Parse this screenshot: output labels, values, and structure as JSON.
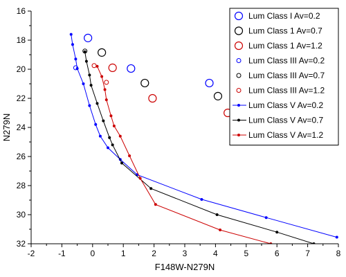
{
  "chart_data": {
    "type": "scatter",
    "title": "",
    "xlabel": "F148W-N279N",
    "ylabel": "N279N",
    "xlim": [
      -2,
      8
    ],
    "ylim": [
      32,
      16
    ],
    "y_inverted": true,
    "grid": false,
    "legend_position": "top-right",
    "x_ticks": [
      -2,
      -1,
      0,
      1,
      2,
      3,
      4,
      5,
      6,
      7,
      8
    ],
    "y_ticks": [
      16,
      18,
      20,
      22,
      24,
      26,
      28,
      30,
      32
    ],
    "series": [
      {
        "name": "Lum Class I Av=0.2",
        "color": "#0000ff",
        "marker": "open-circle-large",
        "line": false,
        "points": [
          [
            -0.15,
            17.85
          ],
          [
            1.25,
            19.95
          ],
          [
            3.8,
            20.95
          ]
        ]
      },
      {
        "name": "Lum Class 1 Av=0.7",
        "color": "#000000",
        "marker": "open-circle-large",
        "line": false,
        "points": [
          [
            0.3,
            18.85
          ],
          [
            1.7,
            20.95
          ],
          [
            4.08,
            21.85
          ]
        ]
      },
      {
        "name": "Lum Class 1 Av=1.2",
        "color": "#cc0000",
        "marker": "open-circle-large",
        "line": false,
        "points": [
          [
            0.65,
            19.9
          ],
          [
            1.95,
            22.0
          ],
          [
            4.4,
            23.0
          ]
        ]
      },
      {
        "name": "Lum Class III Av=0.2",
        "color": "#0000ff",
        "marker": "open-circle-small",
        "line": false,
        "points": [
          [
            -0.55,
            19.9
          ]
        ]
      },
      {
        "name": "Lum Class III Av=0.7",
        "color": "#000000",
        "marker": "open-circle-small",
        "line": false,
        "points": [
          [
            -0.25,
            18.75
          ]
        ]
      },
      {
        "name": "Lum Class III Av=1.2",
        "color": "#cc0000",
        "marker": "open-circle-small",
        "line": false,
        "points": [
          [
            0.45,
            20.9
          ],
          [
            0.05,
            19.75
          ]
        ]
      },
      {
        "name": "Lum Class V Av=0.2",
        "color": "#0000ff",
        "marker": "dot",
        "line": true,
        "points": [
          [
            -0.7,
            17.6
          ],
          [
            -0.65,
            18.3
          ],
          [
            -0.55,
            19.3
          ],
          [
            -0.5,
            19.95
          ],
          [
            -0.3,
            21.0
          ],
          [
            -0.1,
            22.5
          ],
          [
            0.1,
            23.8
          ],
          [
            0.25,
            24.6
          ],
          [
            0.5,
            25.4
          ],
          [
            0.9,
            26.2
          ],
          [
            1.45,
            27.25
          ],
          [
            3.55,
            28.95
          ],
          [
            5.65,
            30.2
          ],
          [
            7.95,
            31.55
          ]
        ]
      },
      {
        "name": "Lum Class V Av=0.7",
        "color": "#000000",
        "marker": "dot",
        "line": true,
        "points": [
          [
            -0.25,
            18.8
          ],
          [
            -0.2,
            19.45
          ],
          [
            -0.1,
            20.4
          ],
          [
            -0.05,
            21.1
          ],
          [
            0.15,
            22.35
          ],
          [
            0.35,
            23.55
          ],
          [
            0.55,
            24.7
          ],
          [
            0.65,
            25.2
          ],
          [
            0.95,
            26.45
          ],
          [
            1.9,
            28.2
          ],
          [
            4.05,
            30.0
          ],
          [
            6.0,
            31.2
          ],
          [
            7.2,
            32.0
          ]
        ]
      },
      {
        "name": "Lum Class V Av=1.2",
        "color": "#cc0000",
        "marker": "dot",
        "line": true,
        "points": [
          [
            0.15,
            19.8
          ],
          [
            0.3,
            20.5
          ],
          [
            0.4,
            21.4
          ],
          [
            0.45,
            22.1
          ],
          [
            0.6,
            23.2
          ],
          [
            0.7,
            23.9
          ],
          [
            0.9,
            24.6
          ],
          [
            1.2,
            25.95
          ],
          [
            1.55,
            27.5
          ],
          [
            2.05,
            29.3
          ],
          [
            4.15,
            31.05
          ],
          [
            5.8,
            32.0
          ]
        ]
      }
    ]
  }
}
